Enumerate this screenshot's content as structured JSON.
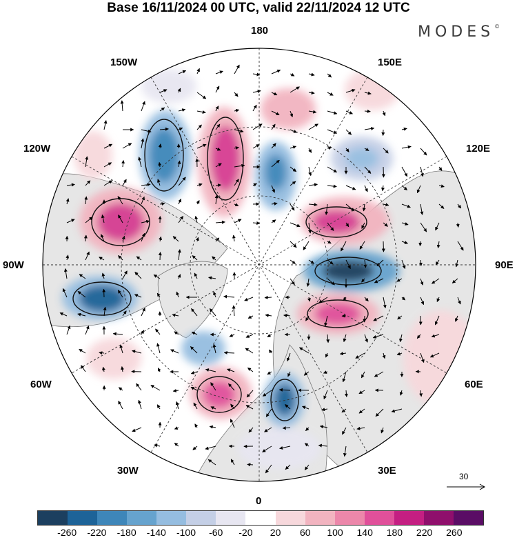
{
  "title": "Base 16/11/2024 00 UTC, valid 22/11/2024 12 UTC",
  "logo": {
    "text": "MODES",
    "mark": "©"
  },
  "longitude_labels": {
    "top": "180",
    "bottom": "0",
    "left": "90W",
    "right": "90E",
    "upper_left_1": "150W",
    "upper_left_2": "120W",
    "upper_right_1": "150E",
    "upper_right_2": "120E",
    "lower_left_1": "60W",
    "lower_left_2": "30W",
    "lower_right_1": "60E",
    "lower_right_2": "30E"
  },
  "wind_reference": {
    "value": "30"
  },
  "colorbar": {
    "colors": [
      "#1c3f5f",
      "#1d6398",
      "#3e86b9",
      "#66a3ce",
      "#95bde0",
      "#c4cfe6",
      "#e7e6f1",
      "#ffffff",
      "#f7d8dc",
      "#f2b4c0",
      "#ec87aa",
      "#e0509a",
      "#c41f82",
      "#8f0f6c",
      "#5a0d65"
    ],
    "ticks": [
      "-260",
      "-220",
      "-180",
      "-140",
      "-100",
      "-60",
      "-20",
      "20",
      "60",
      "100",
      "140",
      "180",
      "220",
      "260"
    ]
  },
  "chart_data": {
    "type": "heatmap",
    "projection": "north polar stereographic",
    "levels": [
      -260,
      -220,
      -180,
      -140,
      -100,
      -60,
      -20,
      20,
      60,
      100,
      140,
      180,
      220,
      260
    ],
    "meridian_spacing_deg": 30,
    "wind_vectors": "present",
    "anomaly_centers": [
      {
        "value": 190,
        "lon_label": "near 160W"
      },
      {
        "value": -170,
        "lon_label": "near 140W"
      },
      {
        "value": 170,
        "lon_label": "near 105W"
      },
      {
        "value": -190,
        "lon_label": "near 80W"
      },
      {
        "value": -120,
        "lon_label": "near 50W"
      },
      {
        "value": 150,
        "lon_label": "near 25W"
      },
      {
        "value": -180,
        "lon_label": "near 15E"
      },
      {
        "value": 170,
        "lon_label": "near 70E"
      },
      {
        "value": -220,
        "lon_label": "near 90E"
      },
      {
        "value": 180,
        "lon_label": "near 115E"
      },
      {
        "value": -120,
        "lon_label": "near 150E"
      },
      {
        "value": 80,
        "lon_label": "near 170E"
      }
    ]
  }
}
